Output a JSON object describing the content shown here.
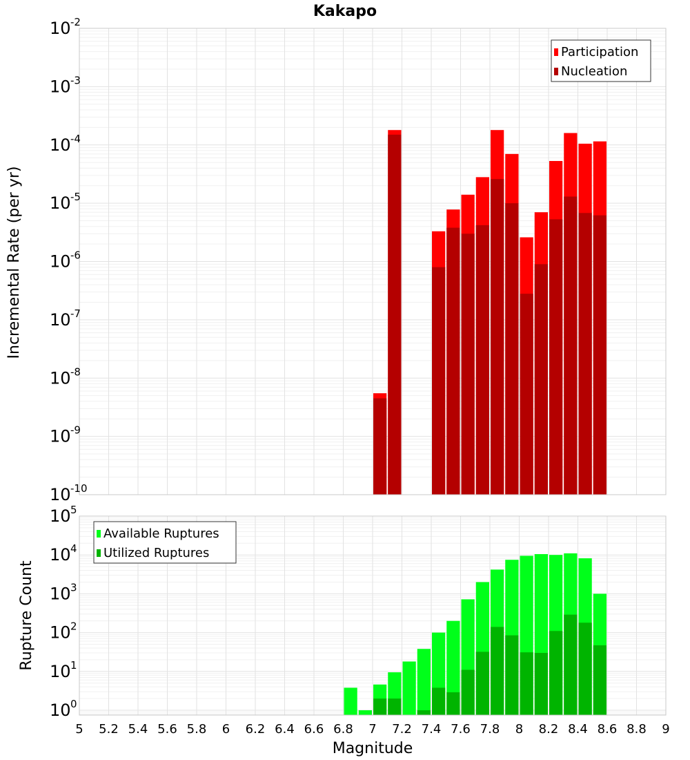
{
  "chart_data": [
    {
      "type": "bar",
      "title": "Kakapo",
      "ylabel": "Incremental Rate (per yr)",
      "xlabel": "",
      "ylog": true,
      "ylim": [
        1e-10,
        0.01
      ],
      "xlim": [
        5,
        9
      ],
      "x": [
        7.05,
        7.15,
        7.45,
        7.55,
        7.65,
        7.75,
        7.85,
        7.95,
        8.05,
        8.15,
        8.25,
        8.35,
        8.45,
        8.55
      ],
      "legend_position": "top-right",
      "series": [
        {
          "name": "Participation",
          "color": "#ff0000",
          "values": [
            5.5e-09,
            0.00018,
            3.3e-06,
            7.8e-06,
            1.4e-05,
            2.8e-05,
            0.00018,
            7e-05,
            2.6e-06,
            7e-06,
            5.3e-05,
            0.00016,
            0.000105,
            0.000115
          ]
        },
        {
          "name": "Nucleation",
          "color": "#b40000",
          "values": [
            4.5e-09,
            0.00015,
            8e-07,
            3.8e-06,
            3e-06,
            4.2e-06,
            2.6e-05,
            1e-05,
            2.8e-07,
            9e-07,
            5.3e-06,
            1.3e-05,
            6.8e-06,
            6.2e-06
          ]
        }
      ]
    },
    {
      "type": "bar",
      "title": "",
      "ylabel": "Rupture Count",
      "xlabel": "Magnitude",
      "ylog": true,
      "ylim": [
        0.75,
        100000
      ],
      "xlim": [
        5,
        9
      ],
      "x": [
        6.85,
        6.95,
        7.05,
        7.15,
        7.25,
        7.35,
        7.45,
        7.55,
        7.65,
        7.75,
        7.85,
        7.95,
        8.05,
        8.15,
        8.25,
        8.35,
        8.45,
        8.55
      ],
      "legend_position": "top-left",
      "series": [
        {
          "name": "Available Ruptures",
          "color": "#00ff1a",
          "values": [
            3.8,
            1,
            4.6,
            9.5,
            18,
            38,
            100,
            200,
            720,
            2000,
            4200,
            7500,
            9500,
            10500,
            10000,
            11000,
            8200,
            1000
          ]
        },
        {
          "name": "Utilized Ruptures",
          "color": "#00b400",
          "values": [
            0,
            0,
            2,
            2,
            0,
            1,
            3.8,
            2.9,
            11,
            32,
            140,
            85,
            31,
            30,
            110,
            290,
            180,
            47
          ]
        }
      ]
    }
  ],
  "x_ticks": [
    "5",
    "5.2",
    "5.4",
    "5.6",
    "5.8",
    "6",
    "6.2",
    "6.4",
    "6.6",
    "6.8",
    "7",
    "7.2",
    "7.4",
    "7.6",
    "7.8",
    "8",
    "8.2",
    "8.4",
    "8.6",
    "8.8",
    "9"
  ],
  "top_y_ticks": [
    {
      "base": "10",
      "exp": "-2"
    },
    {
      "base": "10",
      "exp": "-3"
    },
    {
      "base": "10",
      "exp": "-4"
    },
    {
      "base": "10",
      "exp": "-5"
    },
    {
      "base": "10",
      "exp": "-6"
    },
    {
      "base": "10",
      "exp": "-7"
    },
    {
      "base": "10",
      "exp": "-8"
    },
    {
      "base": "10",
      "exp": "-9"
    },
    {
      "base": "10",
      "exp": "-10"
    }
  ],
  "bottom_y_ticks": [
    {
      "base": "10",
      "exp": "5"
    },
    {
      "base": "10",
      "exp": "4"
    },
    {
      "base": "10",
      "exp": "3"
    },
    {
      "base": "10",
      "exp": "2"
    },
    {
      "base": "10",
      "exp": "1"
    },
    {
      "base": "10",
      "exp": "0"
    }
  ]
}
